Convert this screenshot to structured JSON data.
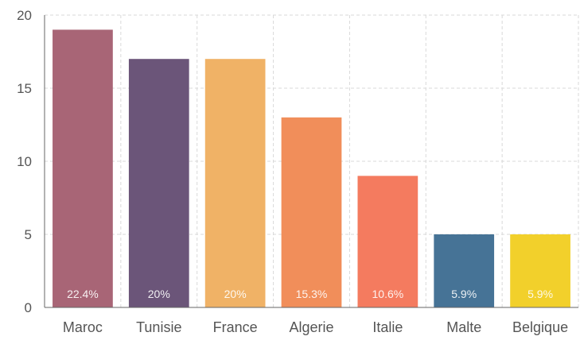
{
  "chart_data": {
    "type": "bar",
    "categories": [
      "Maroc",
      "Tunisie",
      "France",
      "Algerie",
      "Italie",
      "Malte",
      "Belgique"
    ],
    "values": [
      19,
      17,
      17,
      13,
      9,
      5,
      5
    ],
    "data_labels": [
      "22.4%",
      "20%",
      "20%",
      "15.3%",
      "10.6%",
      "5.9%",
      "5.9%"
    ],
    "colors": [
      "#a86576",
      "#6b5579",
      "#f0b266",
      "#f18e5a",
      "#f47b5f",
      "#467396",
      "#f2d02b"
    ],
    "ylim": [
      0,
      20
    ],
    "yticks": [
      0,
      5,
      10,
      15,
      20
    ],
    "grid": true,
    "title": "",
    "xlabel": "",
    "ylabel": ""
  }
}
